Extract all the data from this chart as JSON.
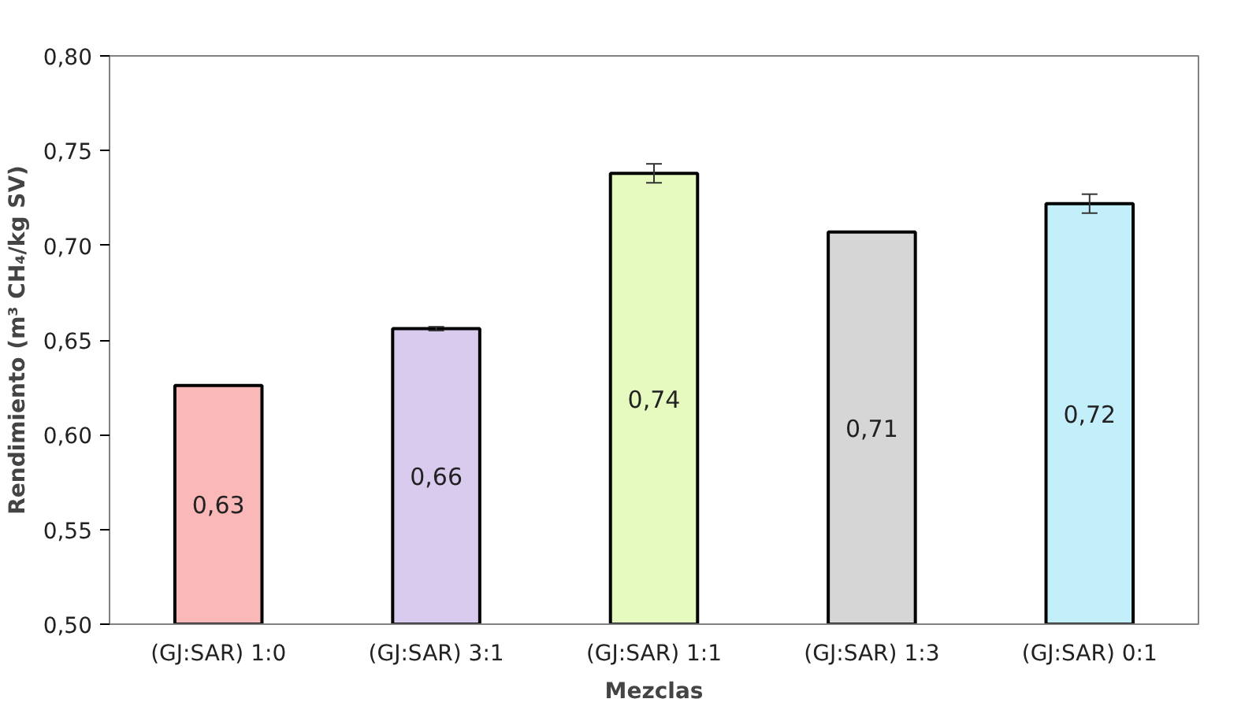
{
  "chart_data": {
    "type": "bar",
    "xlabel": "Mezclas",
    "ylabel": "Rendimiento (m³ CH₄/kg SV)",
    "categories": [
      "(GJ:SAR) 1:0",
      "(GJ:SAR) 3:1",
      "(GJ:SAR) 1:1",
      "(GJ:SAR) 1:3",
      "(GJ:SAR) 0:1"
    ],
    "values": [
      0.626,
      0.656,
      0.738,
      0.707,
      0.722
    ],
    "errors": [
      null,
      0.001,
      0.005,
      null,
      0.005
    ],
    "value_labels": [
      "0,63",
      "0,66",
      "0,74",
      "0,71",
      "0,72"
    ],
    "colors": [
      "#fbb8b8",
      "#d8cbee",
      "#e6f9bf",
      "#d6d6d6",
      "#c3effb"
    ],
    "ylim": [
      0.5,
      0.8
    ],
    "yticks": [
      {
        "value": 0.5,
        "label": "0,50"
      },
      {
        "value": 0.55,
        "label": "0,55"
      },
      {
        "value": 0.6,
        "label": "0,60"
      },
      {
        "value": 0.65,
        "label": "0,65"
      },
      {
        "value": 0.7,
        "label": "0,70"
      },
      {
        "value": 0.75,
        "label": "0,75"
      },
      {
        "value": 0.8,
        "label": "0,80"
      }
    ],
    "grid": false
  }
}
